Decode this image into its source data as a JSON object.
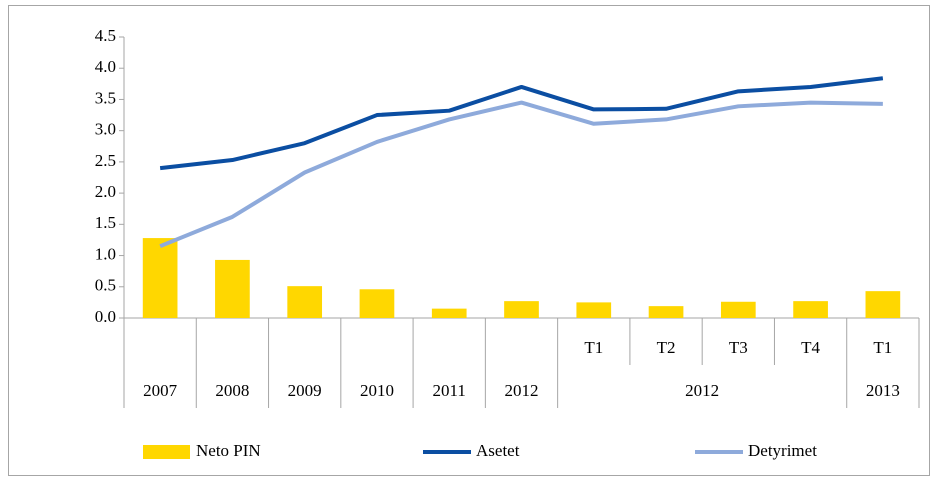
{
  "chart_data": {
    "type": "bar-line",
    "categories": [
      null,
      null,
      null,
      null,
      null,
      null,
      "T1",
      "T2",
      "T3",
      "T4",
      "T1"
    ],
    "groups": [
      {
        "label": "2007",
        "span": 1
      },
      {
        "label": "2008",
        "span": 1
      },
      {
        "label": "2009",
        "span": 1
      },
      {
        "label": "2010",
        "span": 1
      },
      {
        "label": "2011",
        "span": 1
      },
      {
        "label": "2012",
        "span": 1
      },
      {
        "label": "2012",
        "span": 4
      },
      {
        "label": "2013",
        "span": 1
      }
    ],
    "series": [
      {
        "name": "Neto PIN",
        "type": "bar",
        "color": "#ffd700",
        "values": [
          1.28,
          0.93,
          0.51,
          0.46,
          0.15,
          0.27,
          0.25,
          0.19,
          0.26,
          0.27,
          0.43
        ]
      },
      {
        "name": "Asetet",
        "type": "line",
        "color": "#0b4ea2",
        "values": [
          2.4,
          2.53,
          2.8,
          3.25,
          3.32,
          3.7,
          3.34,
          3.35,
          3.63,
          3.7,
          3.84
        ]
      },
      {
        "name": "Detyrimet",
        "type": "line",
        "color": "#8eaadb",
        "values": [
          1.15,
          1.62,
          2.33,
          2.82,
          3.18,
          3.45,
          3.11,
          3.18,
          3.39,
          3.45,
          3.43
        ]
      }
    ],
    "ylim": [
      0,
      4.5
    ],
    "yticks": [
      {
        "value": 0,
        "label": "0.0"
      },
      0.5,
      {
        "value": 1,
        "label": "1.0"
      },
      1.5,
      {
        "value": 2,
        "label": "2.0"
      },
      2.5,
      {
        "value": 3,
        "label": "3.0"
      },
      3.5,
      {
        "value": 4,
        "label": "4.0"
      },
      4.5
    ],
    "legend": "bottom"
  }
}
